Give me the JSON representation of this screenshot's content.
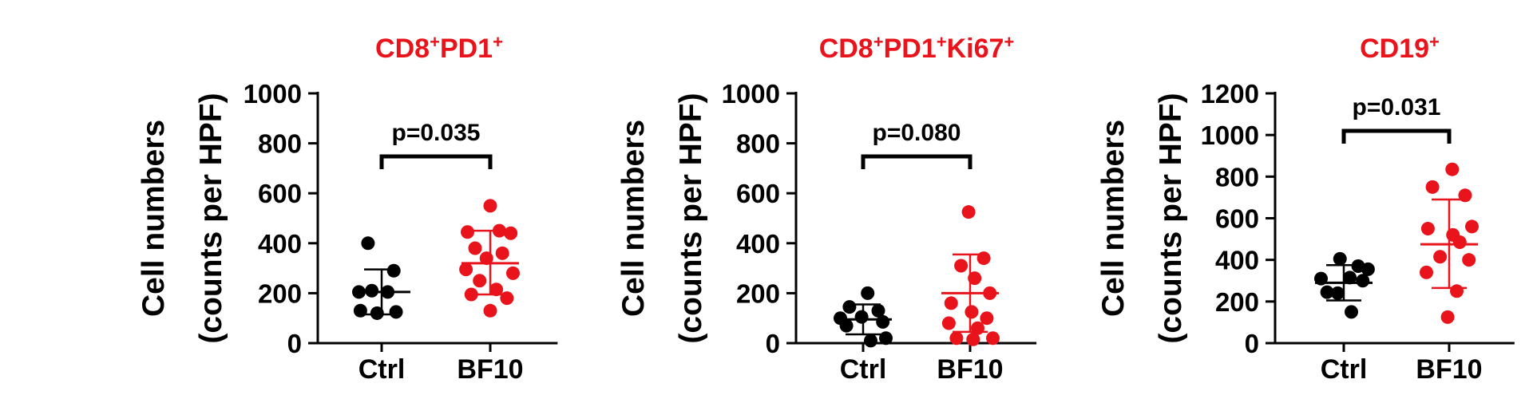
{
  "colors": {
    "ctrl": "#000000",
    "bf10": "#e8131b",
    "title": "#e8131b",
    "axis": "#000000"
  },
  "chart_data": [
    {
      "type": "scatter",
      "title": {
        "parts": [
          {
            "t": "CD8"
          },
          {
            "t": "+",
            "sup": true
          },
          {
            "t": "PD1"
          },
          {
            "t": "+",
            "sup": true
          }
        ]
      },
      "ylabel": [
        "Cell numbers",
        "(counts per HPF)"
      ],
      "ylim": [
        0,
        1000
      ],
      "yticks": [
        "0",
        "200",
        "400",
        "600",
        "800",
        "1000"
      ],
      "categories": [
        "Ctrl",
        "BF10"
      ],
      "pvalue": "p=0.035",
      "series": [
        {
          "category": "Ctrl",
          "mean": 205,
          "sd_low": 115,
          "sd_high": 295,
          "points": [
            [
              -0.18,
              400
            ],
            [
              0.16,
              290
            ],
            [
              -0.3,
              205
            ],
            [
              -0.13,
              210
            ],
            [
              0.08,
              205
            ],
            [
              -0.28,
              130
            ],
            [
              -0.06,
              120
            ],
            [
              0.19,
              125
            ]
          ]
        },
        {
          "category": "BF10",
          "mean": 320,
          "sd_low": 195,
          "sd_high": 450,
          "points": [
            [
              0.0,
              550
            ],
            [
              -0.3,
              445
            ],
            [
              0.12,
              450
            ],
            [
              0.27,
              440
            ],
            [
              -0.2,
              380
            ],
            [
              0.16,
              360
            ],
            [
              -0.05,
              340
            ],
            [
              -0.32,
              295
            ],
            [
              0.3,
              280
            ],
            [
              -0.14,
              250
            ],
            [
              0.08,
              215
            ],
            [
              -0.25,
              195
            ],
            [
              0.22,
              180
            ],
            [
              0.0,
              130
            ]
          ]
        }
      ]
    },
    {
      "type": "scatter",
      "title": {
        "parts": [
          {
            "t": "CD8"
          },
          {
            "t": "+",
            "sup": true
          },
          {
            "t": "PD1"
          },
          {
            "t": "+",
            "sup": true
          },
          {
            "t": "Ki67"
          },
          {
            "t": "+",
            "sup": true
          }
        ]
      },
      "ylabel": [
        "Cell numbers",
        "(counts per HPF)"
      ],
      "ylim": [
        0,
        1000
      ],
      "yticks": [
        "0",
        "200",
        "400",
        "600",
        "800",
        "1000"
      ],
      "categories": [
        "Ctrl",
        "BF10"
      ],
      "pvalue": "p=0.080",
      "series": [
        {
          "category": "Ctrl",
          "mean": 95,
          "sd_low": 35,
          "sd_high": 155,
          "points": [
            [
              0.06,
              200
            ],
            [
              -0.18,
              145
            ],
            [
              0.2,
              130
            ],
            [
              -0.3,
              100
            ],
            [
              -0.02,
              105
            ],
            [
              0.26,
              85
            ],
            [
              -0.22,
              70
            ],
            [
              0.3,
              20
            ],
            [
              0.1,
              10
            ]
          ]
        },
        {
          "category": "BF10",
          "mean": 200,
          "sd_low": 45,
          "sd_high": 355,
          "points": [
            [
              -0.02,
              525
            ],
            [
              0.18,
              340
            ],
            [
              -0.12,
              310
            ],
            [
              0.06,
              260
            ],
            [
              0.26,
              200
            ],
            [
              -0.25,
              160
            ],
            [
              0.02,
              125
            ],
            [
              0.22,
              100
            ],
            [
              -0.28,
              80
            ],
            [
              0.1,
              60
            ],
            [
              -0.18,
              20
            ],
            [
              0.04,
              15
            ],
            [
              0.3,
              20
            ]
          ]
        }
      ]
    },
    {
      "type": "scatter",
      "title": {
        "parts": [
          {
            "t": "CD19"
          },
          {
            "t": "+",
            "sup": true
          }
        ]
      },
      "ylabel": [
        "Cell numbers",
        "(counts per HPF)"
      ],
      "ylim": [
        0,
        1200
      ],
      "yticks": [
        "0",
        "200",
        "400",
        "600",
        "800",
        "1000",
        "1200"
      ],
      "categories": [
        "Ctrl",
        "BF10"
      ],
      "pvalue": "p=0.031",
      "series": [
        {
          "category": "Ctrl",
          "mean": 290,
          "sd_low": 205,
          "sd_high": 375,
          "points": [
            [
              -0.05,
              405
            ],
            [
              0.19,
              370
            ],
            [
              0.32,
              355
            ],
            [
              -0.3,
              310
            ],
            [
              0.08,
              315
            ],
            [
              0.25,
              300
            ],
            [
              -0.22,
              245
            ],
            [
              -0.08,
              240
            ],
            [
              0.1,
              150
            ]
          ]
        },
        {
          "category": "BF10",
          "mean": 475,
          "sd_low": 265,
          "sd_high": 690,
          "points": [
            [
              0.04,
              835
            ],
            [
              -0.22,
              750
            ],
            [
              0.21,
              710
            ],
            [
              0.3,
              560
            ],
            [
              -0.28,
              550
            ],
            [
              0.05,
              520
            ],
            [
              0.14,
              485
            ],
            [
              -0.12,
              415
            ],
            [
              0.26,
              400
            ],
            [
              -0.3,
              340
            ],
            [
              0.1,
              250
            ],
            [
              -0.02,
              125
            ]
          ]
        }
      ]
    }
  ]
}
